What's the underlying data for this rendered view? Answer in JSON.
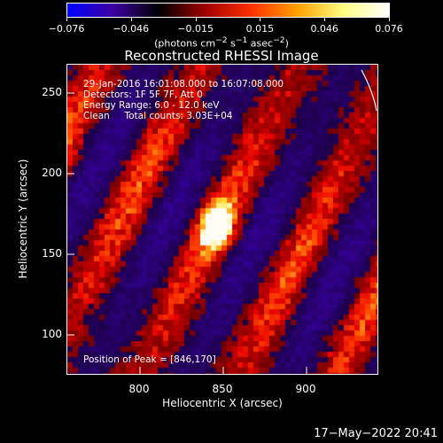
{
  "colorbar": {
    "ticks": [
      "−0.076",
      "−0.046",
      "−0.015",
      "0.015",
      "0.046",
      "0.076"
    ],
    "units_html": "(photons cm<sup>−2</sup> s<sup>−1</sup> asec<sup>−2</sup>)",
    "colors": [
      "#0000ff",
      "#3c00a0",
      "#000000",
      "#a00000",
      "#ff3000",
      "#ffa000",
      "#ffff80",
      "#ffffff"
    ]
  },
  "title": "Reconstructed RHESSI Image",
  "info": {
    "line1": "29-Jan-2016 16:01:08.000 to 16:07:08.000",
    "line2": "Detectors: 1F 5F 7F, Att 0",
    "line3": "Energy Range: 6.0 - 12.0 keV",
    "line4": "Clean     Total counts: 3.03E+04",
    "peak": "Position of Peak = [846,170]"
  },
  "axes": {
    "x_title": "Heliocentric X (arcsec)",
    "y_title": "Heliocentric Y (arcsec)",
    "x_ticks": [
      "800",
      "850",
      "900"
    ],
    "y_ticks": [
      "250",
      "200",
      "150",
      "100"
    ]
  },
  "footer": {
    "date": "17−May−2022 20:41"
  }
}
